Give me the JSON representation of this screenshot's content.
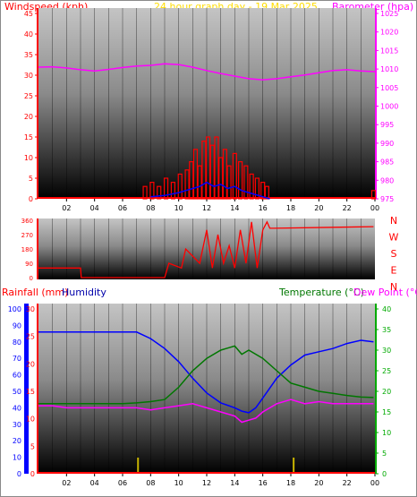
{
  "header": {
    "wind_label": "Windspeed (kph)",
    "title": "24 hour graph day - 19 Mar 2025",
    "baro_label": "Barometer (hpa)"
  },
  "bottom_header": {
    "rain_label": "Rainfall (mm)",
    "hum_label": "Humidity",
    "temp_label": "Temperature (°C)",
    "dew_label": "Dew Point (°C)"
  },
  "colors": {
    "wind": "#ff0000",
    "gust": "#ff0000",
    "avg": "#0000ff",
    "baro": "#ff00ff",
    "dir": "#ff0000",
    "humidity": "#0000ff",
    "temp": "#007700",
    "dew": "#ff00ff",
    "rain": "#ff0000",
    "left_axis_red": "#ff0000",
    "right_axis_magenta": "#ff00ff",
    "title_yellow": "#ffdd00",
    "hum_axis": "#0000ff",
    "temp_axis": "#00aa00"
  },
  "chart_data": [
    {
      "name": "wind-barometer",
      "type": "line",
      "x_ticks": [
        "02",
        "04",
        "06",
        "08",
        "10",
        "12",
        "14",
        "16",
        "18",
        "20",
        "22",
        "00"
      ],
      "ylim_left": [
        0,
        45
      ],
      "ylim_right": [
        975,
        1025
      ],
      "left_ticks": [
        0,
        5,
        10,
        15,
        20,
        25,
        30,
        35,
        40,
        45
      ],
      "right_ticks": [
        975,
        980,
        985,
        990,
        995,
        1000,
        1005,
        1010,
        1015,
        1020,
        1025
      ],
      "barometer_series": {
        "x": [
          0,
          1,
          2,
          3,
          4,
          5,
          6,
          7,
          8,
          9,
          10,
          11,
          12,
          13,
          14,
          15,
          16,
          17,
          18,
          19,
          20,
          21,
          22,
          23,
          24
        ],
        "values": [
          1010.5,
          1010.6,
          1010.3,
          1009.8,
          1009.5,
          1009.9,
          1010.4,
          1010.8,
          1011.0,
          1011.4,
          1011.2,
          1010.5,
          1009.6,
          1008.8,
          1008.1,
          1007.4,
          1007.1,
          1007.4,
          1007.9,
          1008.4,
          1009.0,
          1009.6,
          1009.8,
          1009.5,
          1009.3
        ]
      },
      "gust_bars": {
        "x": [
          7.6,
          8.1,
          8.6,
          9.1,
          9.6,
          10.1,
          10.6,
          10.9,
          11.2,
          11.5,
          11.8,
          12.1,
          12.4,
          12.7,
          13.0,
          13.3,
          13.6,
          14.0,
          14.4,
          14.8,
          15.2,
          15.6,
          16.0,
          16.3,
          23.9
        ],
        "values": [
          3,
          4,
          3,
          5,
          4,
          6,
          7,
          9,
          12,
          8,
          14,
          15,
          13,
          15,
          10,
          12,
          8,
          11,
          9,
          8,
          6,
          5,
          4,
          3,
          2
        ]
      },
      "avg_series": {
        "x": [
          8,
          9,
          10,
          10.5,
          11,
          11.5,
          12,
          12.5,
          13,
          13.5,
          14,
          14.5,
          15,
          15.5,
          16,
          16.5
        ],
        "values": [
          0.5,
          0.8,
          1.5,
          2,
          2.5,
          3,
          4,
          3,
          3.5,
          2.5,
          3,
          2,
          1.5,
          1,
          0.5,
          0
        ]
      }
    },
    {
      "name": "wind-direction",
      "type": "line",
      "x_ticks": [
        "02",
        "04",
        "06",
        "08",
        "10",
        "12",
        "14",
        "16",
        "18",
        "20",
        "22",
        "00"
      ],
      "ylim": [
        0,
        360
      ],
      "ticks": [
        0,
        90,
        180,
        270,
        360
      ],
      "compass": [
        "N",
        "W",
        "S",
        "E",
        "N"
      ],
      "series": {
        "x": [
          0,
          0.1,
          3,
          3.05,
          9,
          9.3,
          10.2,
          10.5,
          11.5,
          12.0,
          12.4,
          12.8,
          13.2,
          13.6,
          14.0,
          14.4,
          14.8,
          15.2,
          15.6,
          16.0,
          16.3,
          16.5,
          16.8,
          23.9
        ],
        "values": [
          60,
          60,
          60,
          0,
          0,
          90,
          60,
          180,
          90,
          300,
          60,
          270,
          90,
          200,
          60,
          300,
          90,
          350,
          60,
          300,
          350,
          310,
          310,
          320
        ]
      }
    },
    {
      "name": "temp-humidity-rain",
      "type": "line",
      "x_ticks": [
        "02",
        "04",
        "06",
        "08",
        "10",
        "12",
        "14",
        "16",
        "18",
        "20",
        "22",
        "00"
      ],
      "humidity_ticks": [
        0,
        10,
        20,
        30,
        40,
        50,
        60,
        70,
        80,
        90,
        100
      ],
      "rain_ticks": [
        0,
        5,
        10,
        15,
        20,
        25,
        30
      ],
      "temp_ticks": [
        0,
        5,
        10,
        15,
        20,
        25,
        30,
        35,
        40
      ],
      "ylim_humidity": [
        0,
        100
      ],
      "ylim_rain": [
        0,
        30
      ],
      "ylim_temp": [
        0,
        40
      ],
      "humidity_series": {
        "x": [
          0,
          1,
          2,
          3,
          4,
          5,
          6,
          7,
          7.5,
          8,
          9,
          10,
          11,
          12,
          13,
          14,
          14.5,
          15,
          15.5,
          16,
          17,
          18,
          19,
          20,
          21,
          22,
          23,
          23.9
        ],
        "values": [
          86,
          86,
          86,
          86,
          86,
          86,
          86,
          86,
          84,
          82,
          76,
          68,
          58,
          49,
          43,
          40,
          38,
          37,
          40,
          46,
          58,
          66,
          72,
          74,
          76,
          79,
          81,
          80
        ]
      },
      "temp_series": {
        "x": [
          0,
          1,
          2,
          3,
          4,
          5,
          6,
          7,
          8,
          9,
          10,
          11,
          12,
          13,
          13.5,
          14,
          14.5,
          15,
          16,
          17,
          18,
          19,
          20,
          21,
          22,
          23,
          23.9
        ],
        "values": [
          17,
          17,
          17,
          17,
          17,
          17,
          17,
          17.2,
          17.5,
          18,
          21,
          25,
          28,
          30,
          30.5,
          31,
          29,
          30,
          28,
          25,
          22,
          21,
          20,
          19.5,
          19,
          18.6,
          18.5
        ]
      },
      "dew_series": {
        "x": [
          0,
          1,
          2,
          3,
          4,
          5,
          6,
          7,
          8,
          9,
          10,
          11,
          12,
          13,
          14,
          14.5,
          15,
          15.5,
          16,
          17,
          18,
          19,
          20,
          21,
          22,
          23,
          23.9
        ],
        "values": [
          16.5,
          16.5,
          16,
          16,
          16,
          16,
          16,
          16,
          15.5,
          16,
          16.5,
          17,
          16,
          15,
          14,
          12.5,
          13,
          13.5,
          15,
          17,
          18,
          17,
          17.5,
          17,
          17,
          17,
          17
        ]
      },
      "rain_marks": {
        "x": [
          7.1,
          18.2
        ],
        "values": [
          1.5,
          1.5
        ]
      }
    }
  ]
}
